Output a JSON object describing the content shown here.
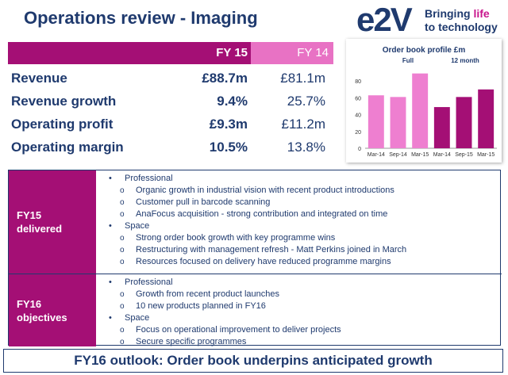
{
  "title": "Operations review - Imaging",
  "logo": {
    "mark": "e2V",
    "tag_line1_pre": "Bringing ",
    "tag_line1_hl": "life",
    "tag_line2": "to technology"
  },
  "metrics": {
    "header": {
      "fy15": "FY 15",
      "fy14": "FY 14"
    },
    "rows": [
      {
        "label": "Revenue",
        "fy15": "£88.7m",
        "fy14": "£81.1m"
      },
      {
        "label": "Revenue growth",
        "fy15": "9.4%",
        "fy14": "25.7%"
      },
      {
        "label": "Operating profit",
        "fy15": "£9.3m",
        "fy14": "£11.2m"
      },
      {
        "label": "Operating margin",
        "fy15": "10.5%",
        "fy14": "13.8%"
      }
    ]
  },
  "chart_data": {
    "type": "bar",
    "title": "Order book profile £m",
    "annotations": [
      "Full",
      "12 month"
    ],
    "categories": [
      "Mar-14",
      "Sep-14",
      "Mar-15",
      "Mar-14",
      "Sep-15",
      "Mar-15"
    ],
    "series": [
      {
        "name": "Full",
        "values": [
          63,
          61,
          89,
          null,
          null,
          null
        ],
        "color": "#ee7fd0"
      },
      {
        "name": "12 month",
        "values": [
          null,
          null,
          null,
          49,
          61,
          70
        ],
        "color": "#a40f75"
      }
    ],
    "yticks": [
      0,
      20,
      40,
      60,
      80
    ],
    "ylim": [
      0,
      100
    ],
    "grid": false
  },
  "sections": [
    {
      "label": "FY15\ndelivered",
      "items": [
        {
          "level": 1,
          "text": "Professional"
        },
        {
          "level": 2,
          "text": "Organic growth in industrial vision with recent product introductions"
        },
        {
          "level": 2,
          "text": "Customer pull in barcode scanning"
        },
        {
          "level": 2,
          "text": "AnaFocus acquisition - strong contribution and integrated on time"
        },
        {
          "level": 1,
          "text": "Space"
        },
        {
          "level": 2,
          "text": "Strong order book growth with key programme wins"
        },
        {
          "level": 2,
          "text": "Restructuring with management refresh - Matt Perkins joined in March"
        },
        {
          "level": 2,
          "text": "Resources focused on delivery have reduced programme margins"
        }
      ]
    },
    {
      "label": "FY16\nobjectives",
      "items": [
        {
          "level": 1,
          "text": "Professional"
        },
        {
          "level": 2,
          "text": "Growth from recent product launches"
        },
        {
          "level": 2,
          "text": "10 new products planned in FY16"
        },
        {
          "level": 1,
          "text": "Space"
        },
        {
          "level": 2,
          "text": "Focus on operational improvement to deliver projects"
        },
        {
          "level": 2,
          "text": "Secure specific programmes"
        }
      ]
    }
  ],
  "outlook": "FY16 outlook: Order book underpins anticipated growth"
}
